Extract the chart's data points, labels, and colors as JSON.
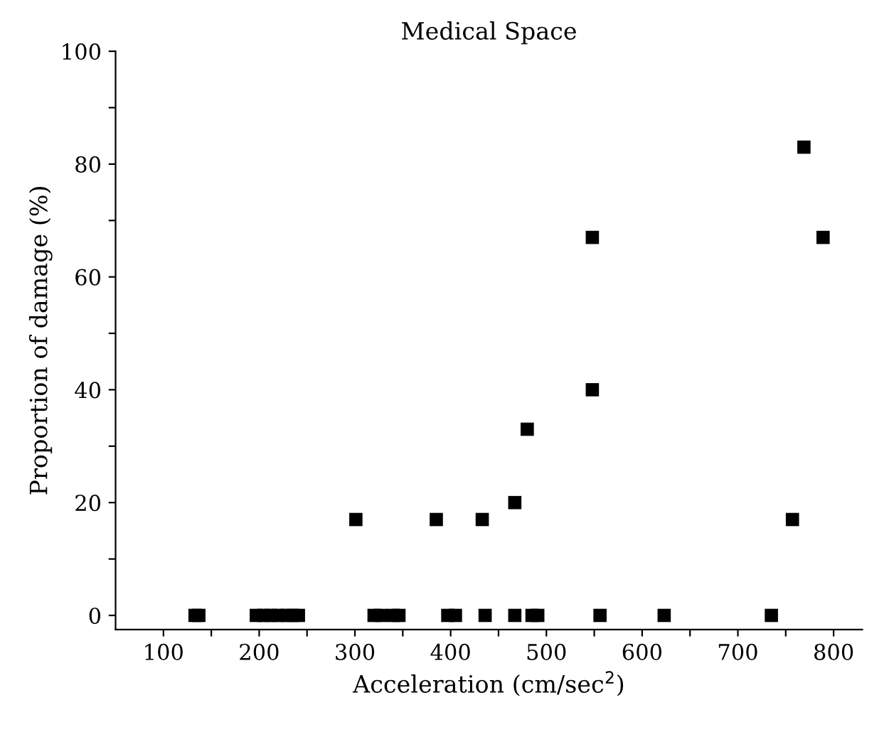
{
  "chart_data": {
    "type": "scatter",
    "title": "Medical Space",
    "xlabel": "Acceleration (cm/sec$^{2}$)",
    "ylabel": "Proportion of damage (%)",
    "x": [
      133,
      137,
      197,
      205,
      212,
      220,
      228,
      235,
      241,
      301,
      320,
      327,
      340,
      346,
      385,
      397,
      405,
      433,
      436,
      467,
      467,
      480,
      485,
      491,
      548,
      548,
      556,
      623,
      735,
      757,
      769,
      789
    ],
    "values": [
      0,
      0,
      0,
      0,
      0,
      0,
      0,
      0,
      0,
      17,
      0,
      0,
      0,
      0,
      17,
      0,
      0,
      17,
      0,
      20,
      0,
      33,
      0,
      0,
      67,
      40,
      0,
      0,
      0,
      17,
      83,
      67
    ],
    "color": "#000000",
    "marker": "square",
    "grid": false,
    "xlim": [
      50,
      830
    ],
    "ylim": [
      -2.5,
      100
    ],
    "xticks": [
      100,
      {
        "value": 150,
        "label": null
      },
      200,
      {
        "value": 250,
        "label": null
      },
      300,
      {
        "value": 350,
        "label": null
      },
      400,
      {
        "value": 450,
        "label": null
      },
      500,
      {
        "value": 550,
        "label": null
      },
      600,
      {
        "value": 650,
        "label": null
      },
      700,
      {
        "value": 750,
        "label": null
      },
      800
    ],
    "yticks": [
      0,
      {
        "value": 10,
        "label": null
      },
      20,
      {
        "value": 30,
        "label": null
      },
      40,
      {
        "value": 50,
        "label": null
      },
      60,
      {
        "value": 70,
        "label": null
      },
      80,
      {
        "value": 90,
        "label": null
      },
      100
    ]
  }
}
